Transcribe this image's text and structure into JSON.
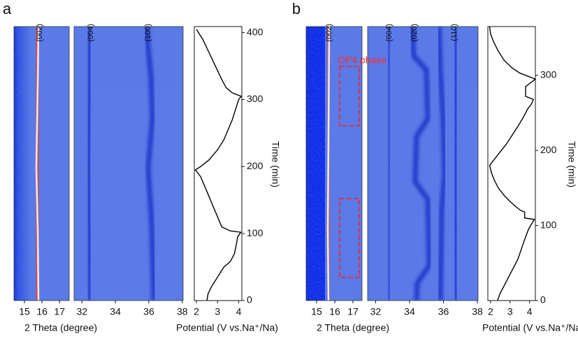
{
  "chart_data": [
    {
      "type": "line",
      "panel_label": "a",
      "peak_labels": [
        "(002)",
        "(004)",
        "(100)"
      ],
      "xlabel": "2 Theta (degree)",
      "potential_label": "Potential (V vs.Na⁺/Na)",
      "ylabel": "Time (min)",
      "theta_low_lim": [
        14.4,
        17.55
      ],
      "theta_low_ticks": [
        15,
        16,
        17
      ],
      "theta_high_lim": [
        31.53,
        38.05
      ],
      "theta_high_ticks": [
        32,
        34,
        36,
        38
      ],
      "xlim": [
        1.9,
        4.15
      ],
      "xticks": [
        2,
        3,
        4
      ],
      "ylim": [
        0,
        409
      ],
      "yticks": [
        0,
        100,
        200,
        300,
        400
      ],
      "series": [
        {
          "color": "#000000",
          "x": [
            2.5,
            2.55,
            2.7,
            2.9,
            3.1,
            3.3,
            3.6,
            3.8,
            3.9,
            3.95,
            4.1,
            3.6,
            3.2,
            3.0,
            2.8,
            2.6,
            2.4,
            2.2,
            1.95,
            2.2,
            2.6,
            3.0,
            3.3,
            3.5,
            3.7,
            3.85,
            4.0,
            4.12,
            3.7,
            3.4,
            3.2,
            2.9,
            2.6,
            2.3,
            2.0
          ],
          "values": [
            0,
            10,
            20,
            30,
            40,
            50,
            58,
            70,
            85,
            95,
            102,
            104,
            110,
            125,
            140,
            155,
            170,
            185,
            195,
            200,
            210,
            225,
            240,
            255,
            270,
            285,
            300,
            305,
            310,
            318,
            330,
            350,
            370,
            390,
            405
          ]
        }
      ]
    },
    {
      "type": "line",
      "panel_label": "b",
      "peak_labels": [
        "(002)",
        "(004)",
        "(020)",
        "(110)"
      ],
      "annotation": "OP4 phase",
      "xlabel": "2 Theta (degree)",
      "potential_label": "Potential (V vs.Na⁺/Na)",
      "ylabel": "Time (min)",
      "theta_low_lim": [
        14.42,
        17.5
      ],
      "theta_low_ticks": [
        15,
        16,
        17
      ],
      "theta_high_lim": [
        31.53,
        38.04
      ],
      "theta_high_ticks": [
        32,
        34,
        36,
        38
      ],
      "xlim": [
        1.86,
        4.3
      ],
      "xticks": [
        2,
        3,
        4
      ],
      "ylim": [
        0,
        365
      ],
      "yticks": [
        0,
        100,
        200,
        300
      ],
      "series": [
        {
          "color": "#000000",
          "x": [
            2.35,
            2.5,
            2.8,
            3.1,
            3.4,
            3.6,
            3.8,
            3.95,
            4.1,
            4.25,
            3.75,
            3.75,
            3.55,
            3.3,
            3.0,
            2.7,
            2.4,
            2.2,
            2.05,
            1.95,
            2.1,
            2.4,
            2.8,
            3.1,
            3.4,
            3.7,
            3.9,
            4.1,
            4.2,
            3.8,
            3.8,
            4.3,
            4.0,
            3.5,
            3.1,
            2.7,
            2.4,
            2.15,
            2.0,
            1.95
          ],
          "values": [
            0,
            10,
            25,
            40,
            55,
            70,
            85,
            95,
            102,
            108,
            110,
            118,
            120,
            125,
            132,
            140,
            150,
            160,
            170,
            180,
            185,
            195,
            208,
            220,
            232,
            245,
            255,
            262,
            268,
            272,
            285,
            295,
            298,
            303,
            310,
            320,
            332,
            345,
            355,
            365
          ]
        }
      ]
    }
  ]
}
